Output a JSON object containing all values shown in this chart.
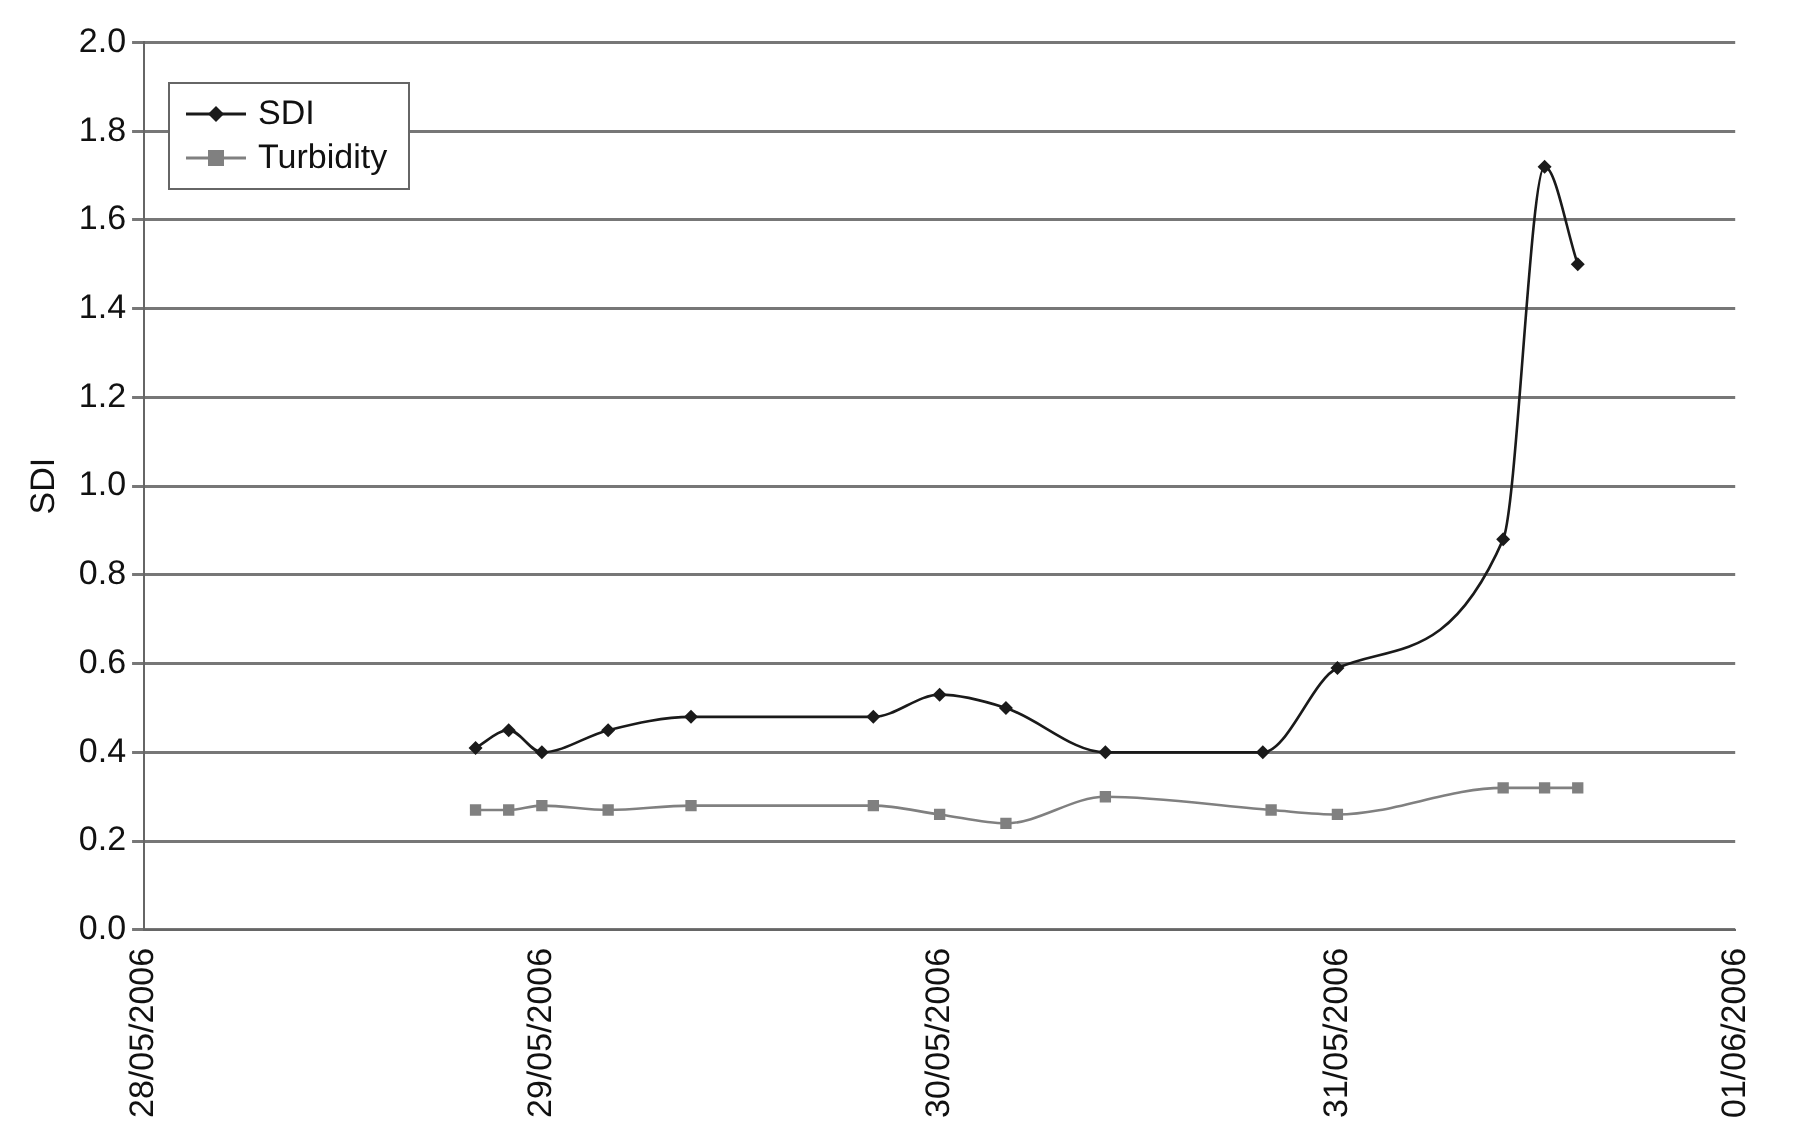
{
  "chart_data": {
    "type": "line",
    "ylabel": "SDI",
    "xlim": [
      "2006-05-28",
      "2006-06-01"
    ],
    "xticks": [
      {
        "value": "2006-05-28",
        "label": "28/05/2006"
      },
      {
        "value": "2006-05-29",
        "label": "29/05/2006"
      },
      {
        "value": "2006-05-30",
        "label": "30/05/2006"
      },
      {
        "value": "2006-05-31",
        "label": "31/05/2006"
      },
      {
        "value": "2006-06-01",
        "label": "01/06/2006"
      }
    ],
    "ylim": [
      0,
      2
    ],
    "yticks": [
      {
        "value": 0,
        "label": "0.0"
      },
      0.2,
      0.4,
      0.6,
      0.8,
      {
        "value": 1,
        "label": "1.0"
      },
      1.2,
      1.4,
      1.6,
      1.8,
      {
        "value": 2,
        "label": "2.0"
      }
    ],
    "grid": "y",
    "legend": "top left",
    "line_style": "solid",
    "series": [
      {
        "name": "SDI",
        "color": "#1a1a1a",
        "marker": "diamond",
        "x": [
          "2006-05-28T20:00",
          "2006-05-28T22:00",
          "2006-05-29T00:00",
          "2006-05-29T04:00",
          "2006-05-29T09:00",
          "2006-05-29T20:00",
          "2006-05-30T00:00",
          "2006-05-30T04:00",
          "2006-05-30T10:00",
          "2006-05-30T19:30",
          "2006-05-31T00:00",
          "2006-05-31T10:00",
          "2006-05-31T12:30",
          "2006-05-31T14:30"
        ],
        "values": [
          0.41,
          0.45,
          0.4,
          0.45,
          0.48,
          0.48,
          0.53,
          0.5,
          0.4,
          0.4,
          0.59,
          0.88,
          1.72,
          1.5
        ]
      },
      {
        "name": "Turbidity",
        "color": "#808080",
        "marker": "square",
        "x": [
          "2006-05-28T20:00",
          "2006-05-28T22:00",
          "2006-05-29T00:00",
          "2006-05-29T04:00",
          "2006-05-29T09:00",
          "2006-05-29T20:00",
          "2006-05-30T00:00",
          "2006-05-30T04:00",
          "2006-05-30T10:00",
          "2006-05-30T20:00",
          "2006-05-31T00:00",
          "2006-05-31T10:00",
          "2006-05-31T12:30",
          "2006-05-31T14:30"
        ],
        "values": [
          0.27,
          0.27,
          0.28,
          0.27,
          0.28,
          0.28,
          0.26,
          0.24,
          0.3,
          0.27,
          0.26,
          0.32,
          0.32,
          0.32
        ]
      }
    ]
  }
}
